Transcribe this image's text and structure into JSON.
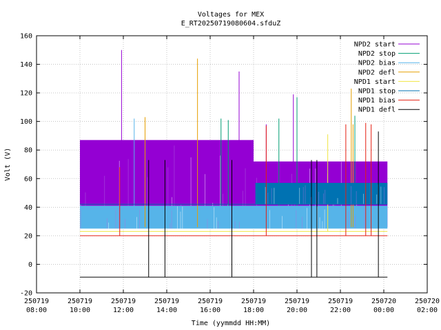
{
  "chart_data": {
    "type": "line",
    "title": "Voltages for MEX",
    "subtitle": "E_RT20250719080604.sfduZ",
    "xlabel": "Time (yymmdd HH:MM)",
    "ylabel": "Volt (V)",
    "xlim": [
      "250719 08:00",
      "250720 02:00"
    ],
    "ylim": [
      -20,
      160
    ],
    "grid": true,
    "legend_position": "top-right",
    "x_ticks": [
      {
        "line1": "250719",
        "line2": "08:00"
      },
      {
        "line1": "250719",
        "line2": "10:00"
      },
      {
        "line1": "250719",
        "line2": "12:00"
      },
      {
        "line1": "250719",
        "line2": "14:00"
      },
      {
        "line1": "250719",
        "line2": "16:00"
      },
      {
        "line1": "250719",
        "line2": "18:00"
      },
      {
        "line1": "250719",
        "line2": "20:00"
      },
      {
        "line1": "250719",
        "line2": "22:00"
      },
      {
        "line1": "250720",
        "line2": "00:00"
      },
      {
        "line1": "250720",
        "line2": "02:00"
      }
    ],
    "y_ticks": [
      "-20",
      "0",
      "20",
      "40",
      "60",
      "80",
      "100",
      "120",
      "140",
      "160"
    ],
    "series": [
      {
        "name": "NPD2 start",
        "color": "#9400d3",
        "bands": [
          {
            "x_start": "250719 10:00",
            "x_end": "250719 18:00",
            "low": 26,
            "high": 87
          },
          {
            "x_start": "250719 18:00",
            "x_end": "250720 00:10",
            "low": 26,
            "high": 72
          }
        ],
        "spikes": [
          {
            "x": "250719 11:55",
            "y": 150
          },
          {
            "x": "250719 17:20",
            "y": 135
          },
          {
            "x": "250719 19:50",
            "y": 119
          },
          {
            "x": "250719 18:35",
            "y": 98
          }
        ]
      },
      {
        "name": "NPD2 stop",
        "color": "#009e73",
        "bands": [],
        "spikes": [
          {
            "x": "250719 16:30",
            "y": 102
          },
          {
            "x": "250719 16:50",
            "y": 101
          },
          {
            "x": "250719 19:10",
            "y": 102
          },
          {
            "x": "250719 20:00",
            "y": 117
          },
          {
            "x": "250719 22:40",
            "y": 104
          }
        ]
      },
      {
        "name": "NPD2 bias",
        "color": "#56b4e9",
        "bands": [
          {
            "x_start": "250719 10:00",
            "x_end": "250720 00:10",
            "low": 25,
            "high": 41
          }
        ],
        "spikes": [
          {
            "x": "250719 12:30",
            "y": 102
          }
        ]
      },
      {
        "name": "NPD2 defl",
        "color": "#e69f00",
        "bands": [],
        "spikes": [
          {
            "x": "250719 13:00",
            "y": 103
          },
          {
            "x": "250719 15:25",
            "y": 144
          },
          {
            "x": "250719 22:30",
            "y": 123
          },
          {
            "x": "250719 22:35",
            "y": 98
          }
        ]
      },
      {
        "name": "NPD1 start",
        "color": "#f0e442",
        "bands": [],
        "level": 23,
        "spikes": [
          {
            "x": "250719 21:25",
            "y": 91
          }
        ]
      },
      {
        "name": "NPD1 stop",
        "color": "#0072b2",
        "bands": [
          {
            "x_start": "250719 18:05",
            "x_end": "250720 00:10",
            "low": 42,
            "high": 57
          }
        ],
        "level": 42,
        "spikes": []
      },
      {
        "name": "NPD1 bias",
        "color": "#e51e10",
        "bands": [],
        "level": 20,
        "spikes": [
          {
            "x": "250719 11:50",
            "y": 68
          },
          {
            "x": "250719 18:35",
            "y": 97
          },
          {
            "x": "250719 22:15",
            "y": 98
          },
          {
            "x": "250719 23:10",
            "y": 99
          },
          {
            "x": "250719 23:25",
            "y": 98
          }
        ]
      },
      {
        "name": "NPD1 defl",
        "color": "#000000",
        "bands": [],
        "level": -9,
        "spikes": [
          {
            "x": "250719 13:10",
            "y": 73
          },
          {
            "x": "250719 13:55",
            "y": 73
          },
          {
            "x": "250719 17:00",
            "y": 73
          },
          {
            "x": "250719 20:40",
            "y": 73
          },
          {
            "x": "250719 20:55",
            "y": 73
          },
          {
            "x": "250719 23:45",
            "y": 93
          }
        ]
      }
    ]
  }
}
